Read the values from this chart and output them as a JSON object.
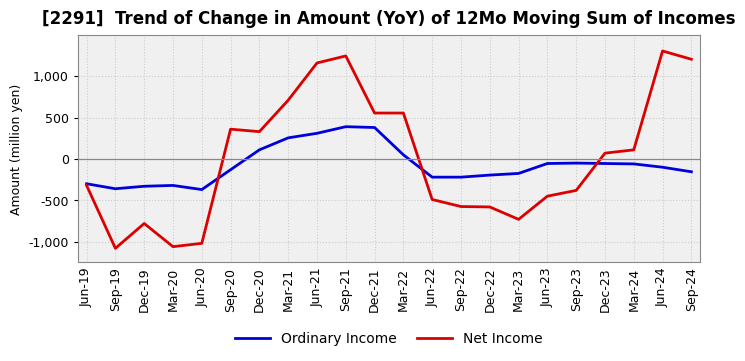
{
  "title": "[2291]  Trend of Change in Amount (YoY) of 12Mo Moving Sum of Incomes",
  "ylabel": "Amount (million yen)",
  "xlabels": [
    "Jun-19",
    "Sep-19",
    "Dec-19",
    "Mar-20",
    "Jun-20",
    "Sep-20",
    "Dec-20",
    "Mar-21",
    "Jun-21",
    "Sep-21",
    "Dec-21",
    "Mar-22",
    "Jun-22",
    "Sep-22",
    "Dec-22",
    "Mar-23",
    "Jun-23",
    "Sep-23",
    "Dec-23",
    "Mar-24",
    "Jun-24",
    "Sep-24"
  ],
  "ordinary_income": [
    -300,
    -360,
    -330,
    -320,
    -370,
    -130,
    110,
    255,
    310,
    390,
    380,
    50,
    -220,
    -220,
    -195,
    -175,
    -55,
    -50,
    -55,
    -60,
    -100,
    -155
  ],
  "net_income": [
    -320,
    -1080,
    -780,
    -1060,
    -1020,
    360,
    330,
    710,
    1160,
    1245,
    555,
    555,
    -490,
    -575,
    -580,
    -730,
    -450,
    -380,
    70,
    110,
    1305,
    1205
  ],
  "ordinary_color": "#0000dd",
  "net_color": "#dd0000",
  "ylim": [
    -1250,
    1500
  ],
  "yticks": [
    -1000,
    -500,
    0,
    500,
    1000
  ],
  "background_color": "#ffffff",
  "plot_bg_color": "#f0f0f0",
  "grid_color": "#cccccc",
  "title_fontsize": 12,
  "label_fontsize": 9,
  "tick_fontsize": 9,
  "legend_fontsize": 10
}
